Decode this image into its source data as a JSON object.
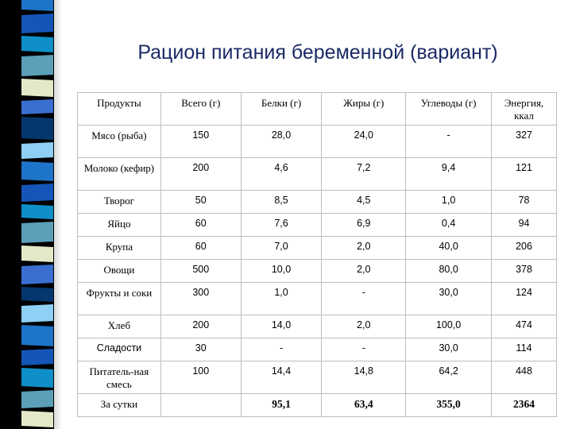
{
  "title": "Рацион питания беременной (вариант)",
  "theme_colors": {
    "stripes": [
      "#1e74c8",
      "#5b9fb8",
      "#05376e",
      "#1455b8",
      "#e4e8c8",
      "#8fd0f5",
      "#0f8fc8",
      "#3a6fd0"
    ]
  },
  "table": {
    "headers": [
      "Продукты",
      "Всего (г)",
      "Белки (г)",
      "Жиры (г)",
      "Углеводы (г)",
      "Энергия, ккал"
    ],
    "rows": [
      [
        "Мясо (рыба)",
        "150",
        "28,0",
        "24,0",
        "-",
        "327"
      ],
      [
        "Молоко (кефир)",
        "200",
        "4,6",
        "7,2",
        "9,4",
        "121"
      ],
      [
        "Творог",
        "50",
        "8,5",
        "4,5",
        "1,0",
        "78"
      ],
      [
        "Яйцо",
        "60",
        "7,6",
        "6,9",
        "0,4",
        "94"
      ],
      [
        "Крупа",
        "60",
        "7,0",
        "2,0",
        "40,0",
        "206"
      ],
      [
        "Овощи",
        "500",
        "10,0",
        "2,0",
        "80,0",
        "378"
      ],
      [
        "Фрукты и соки",
        "300",
        "1,0",
        "-",
        "30,0",
        "124"
      ],
      [
        "Хлеб",
        "200",
        "14,0",
        "2,0",
        "100,0",
        "474"
      ],
      [
        "Сладости",
        "30",
        "-",
        "-",
        "30,0",
        "114"
      ],
      [
        "Питатель-ная смесь",
        "100",
        "14,4",
        "14,8",
        "64,2",
        "448"
      ]
    ],
    "total": [
      "За сутки",
      "",
      "95,1",
      "63,4",
      "355,0",
      "2364"
    ]
  }
}
